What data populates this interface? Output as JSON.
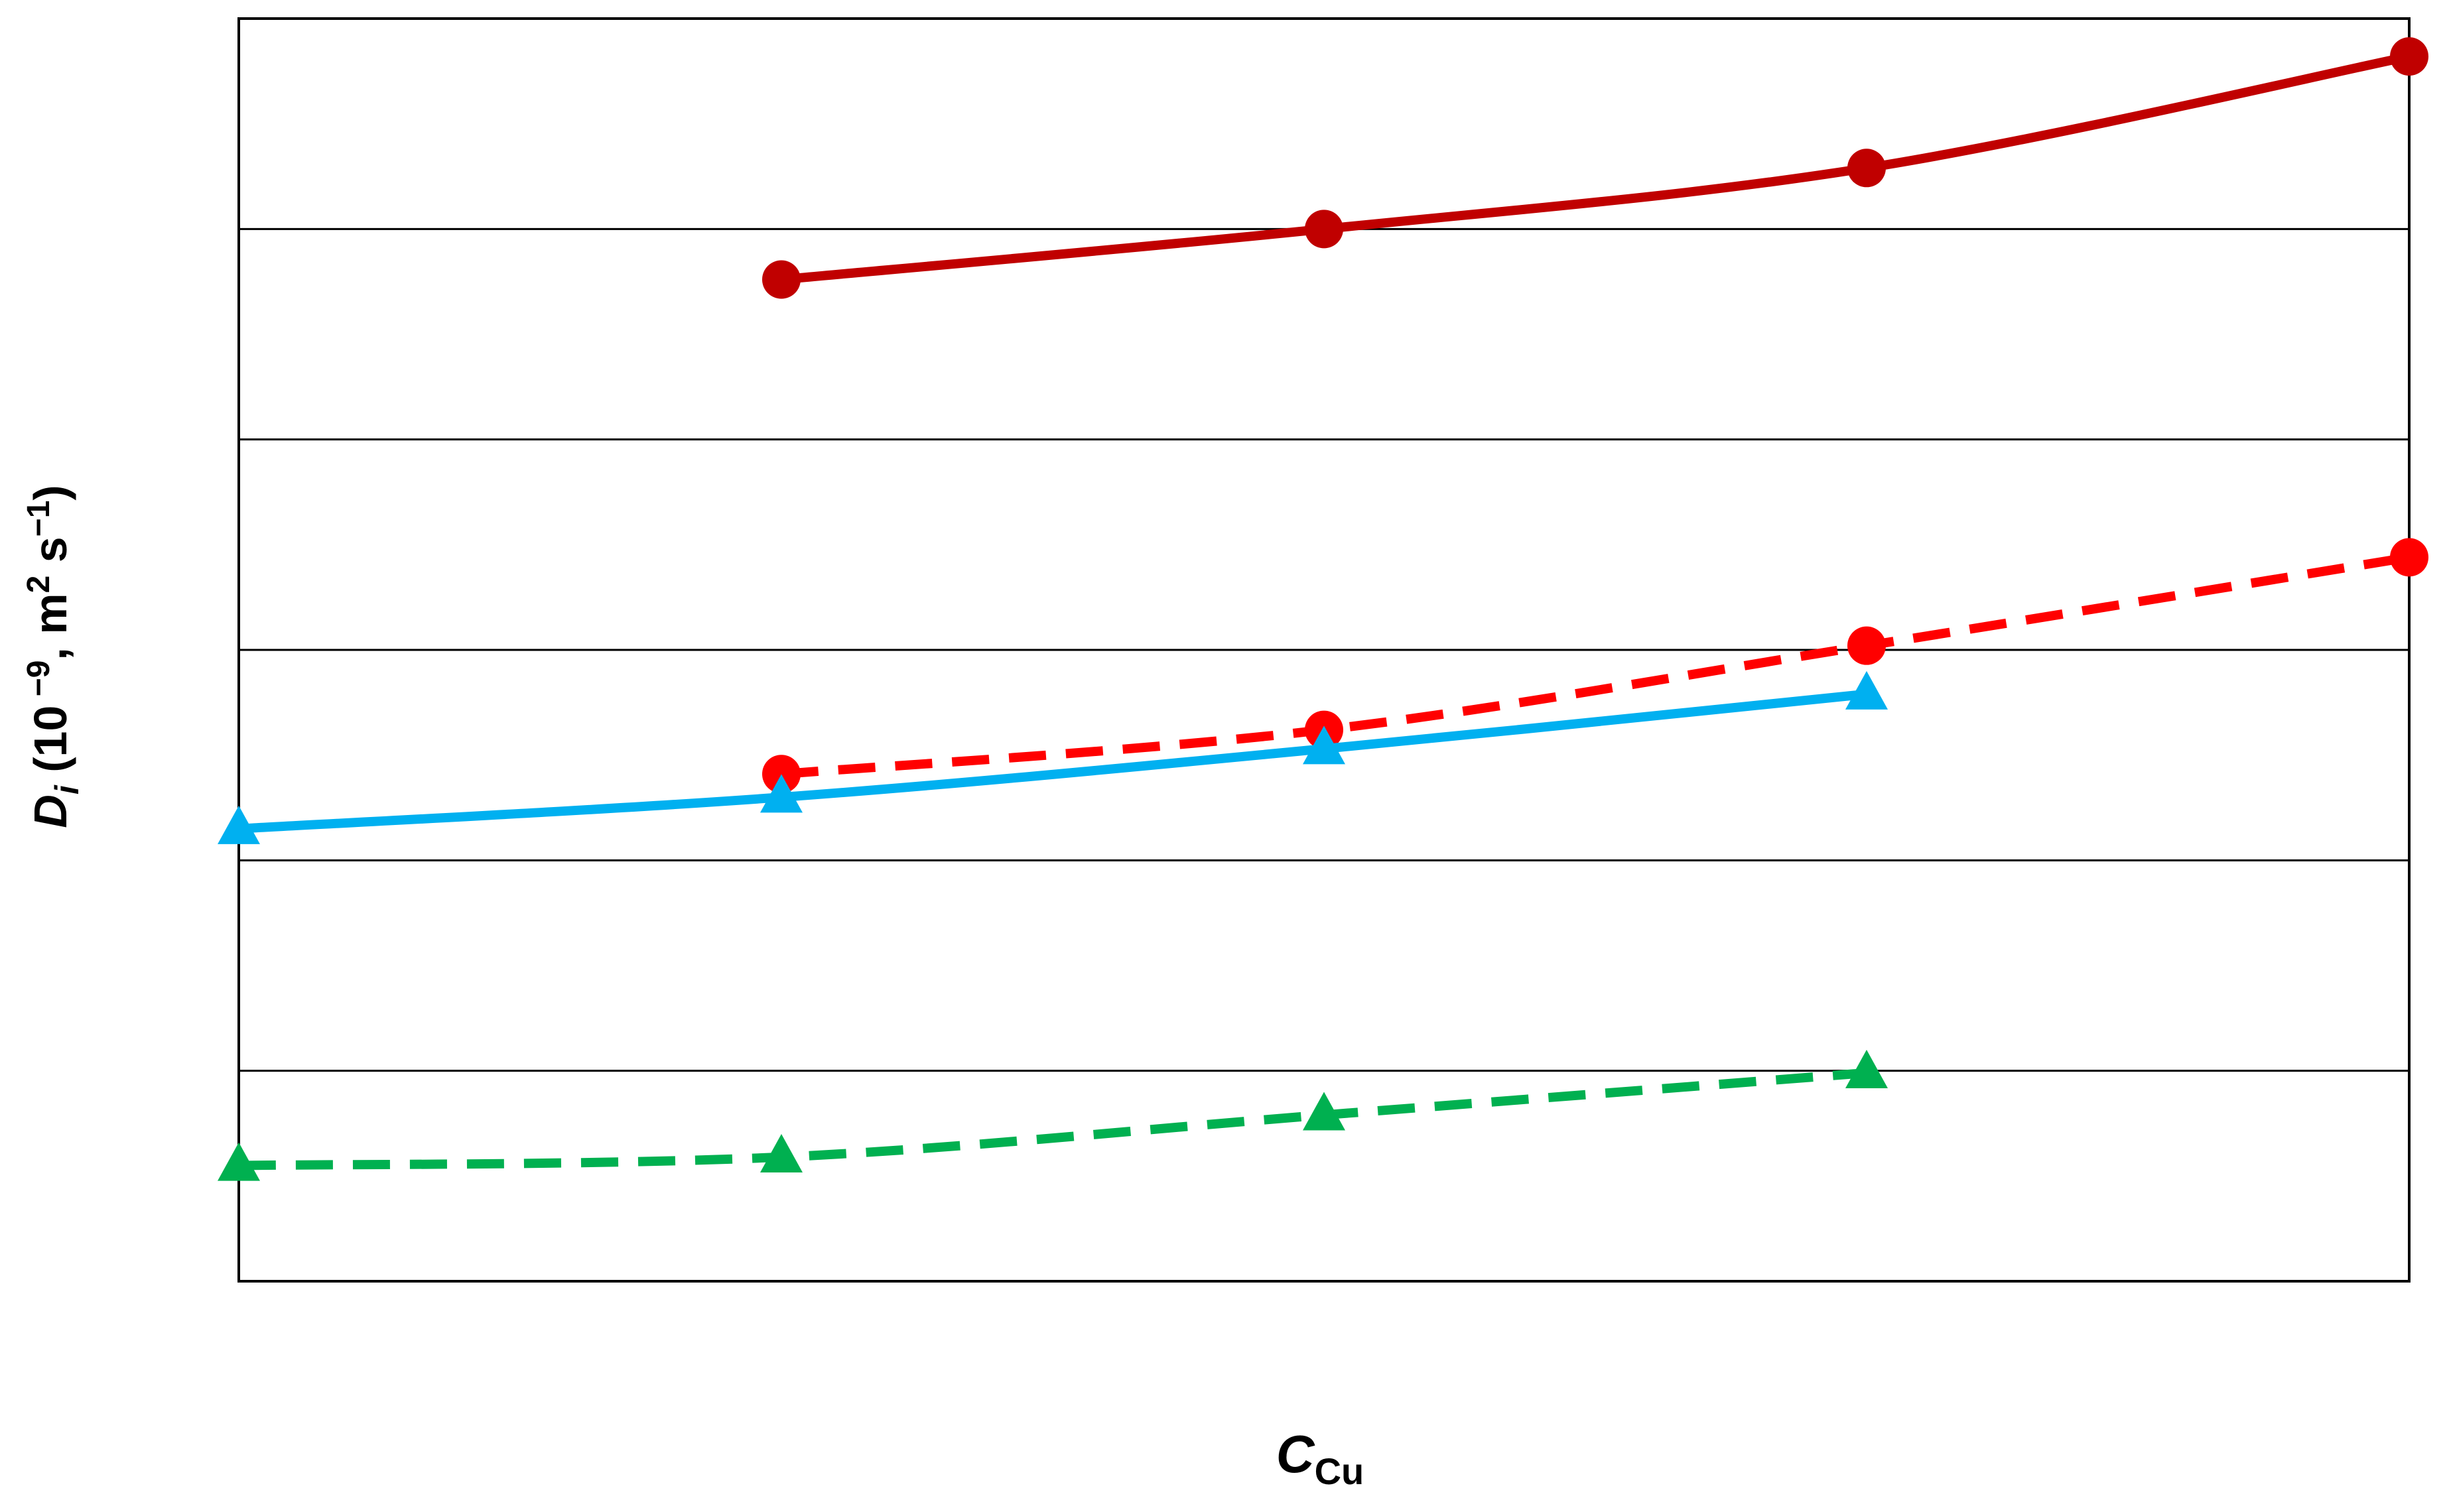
{
  "chart_data": {
    "type": "line",
    "title": "",
    "xlabel": {
      "main": "C",
      "sub": "Cu"
    },
    "ylabel": {
      "symbol": "D",
      "subscript": "i",
      "rest": " (10",
      "exp1": " −9",
      "rest2": ", m",
      "exp2": "2",
      "rest3": " s",
      "exp3": "−1",
      "rest4": ")"
    },
    "x": [
      0,
      1,
      2,
      3,
      4
    ],
    "xlim": [
      0,
      4
    ],
    "ylim": [
      0,
      6
    ],
    "grid": true,
    "series": [
      {
        "values": [
          null,
          4.76,
          5.0,
          5.29,
          5.82
        ],
        "color": "#c00000",
        "dash": false,
        "marker": "circle"
      },
      {
        "values": [
          null,
          2.41,
          2.62,
          3.02,
          3.44
        ],
        "color": "#ff0000",
        "dash": true,
        "marker": "circle"
      },
      {
        "values": [
          2.15,
          2.3,
          2.53,
          2.79,
          null
        ],
        "color": "#00b0f0",
        "dash": false,
        "marker": "triangle"
      },
      {
        "values": [
          0.55,
          0.59,
          0.79,
          0.99,
          null
        ],
        "color": "#00b050",
        "dash": true,
        "marker": "triangle"
      }
    ]
  }
}
